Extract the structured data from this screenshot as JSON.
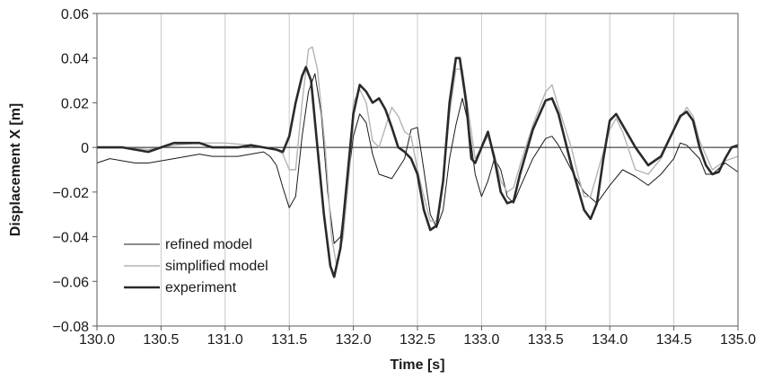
{
  "chart_data": {
    "type": "line",
    "xlabel": "Time [s]",
    "ylabel": "Displacement X [m]",
    "xlim": [
      130.0,
      135.0
    ],
    "ylim": [
      -0.08,
      0.06
    ],
    "x_ticks": [
      130.0,
      130.5,
      131.0,
      131.5,
      132.0,
      132.5,
      133.0,
      133.5,
      134.0,
      134.5,
      135.0
    ],
    "x_tick_labels": [
      "130.0",
      "130.5",
      "131.0",
      "131.5",
      "132.0",
      "132.5",
      "133.0",
      "133.5",
      "134.0",
      "134.5",
      "135.0"
    ],
    "y_ticks": [
      -0.08,
      -0.06,
      -0.04,
      -0.02,
      0,
      0.02,
      0.04,
      0.06
    ],
    "y_tick_labels": [
      "−0.08",
      "−0.06",
      "−0.04",
      "−0.02",
      "0",
      "0.02",
      "0.04",
      "0.06"
    ],
    "grid": "vertical",
    "zero_line": true,
    "legend_position": "bottom-left",
    "series": [
      {
        "name": "refined model",
        "color": "#1a1a1a",
        "width": 1,
        "points": [
          [
            130.0,
            -0.007
          ],
          [
            130.1,
            -0.005
          ],
          [
            130.2,
            -0.006
          ],
          [
            130.3,
            -0.007
          ],
          [
            130.4,
            -0.007
          ],
          [
            130.5,
            -0.006
          ],
          [
            130.6,
            -0.005
          ],
          [
            130.7,
            -0.004
          ],
          [
            130.8,
            -0.003
          ],
          [
            130.9,
            -0.004
          ],
          [
            131.0,
            -0.004
          ],
          [
            131.1,
            -0.004
          ],
          [
            131.2,
            -0.003
          ],
          [
            131.3,
            -0.002
          ],
          [
            131.35,
            -0.004
          ],
          [
            131.4,
            -0.008
          ],
          [
            131.45,
            -0.018
          ],
          [
            131.5,
            -0.027
          ],
          [
            131.55,
            -0.022
          ],
          [
            131.6,
            0.005
          ],
          [
            131.65,
            0.025
          ],
          [
            131.7,
            0.033
          ],
          [
            131.75,
            0.015
          ],
          [
            131.8,
            -0.02
          ],
          [
            131.85,
            -0.043
          ],
          [
            131.9,
            -0.04
          ],
          [
            131.95,
            -0.018
          ],
          [
            132.0,
            0.005
          ],
          [
            132.05,
            0.015
          ],
          [
            132.1,
            0.011
          ],
          [
            132.15,
            -0.003
          ],
          [
            132.2,
            -0.012
          ],
          [
            132.3,
            -0.014
          ],
          [
            132.4,
            -0.005
          ],
          [
            132.45,
            0.008
          ],
          [
            132.5,
            0.009
          ],
          [
            132.55,
            -0.01
          ],
          [
            132.6,
            -0.03
          ],
          [
            132.65,
            -0.036
          ],
          [
            132.7,
            -0.028
          ],
          [
            132.75,
            -0.005
          ],
          [
            132.8,
            0.01
          ],
          [
            132.85,
            0.022
          ],
          [
            132.9,
            0.01
          ],
          [
            132.95,
            -0.012
          ],
          [
            133.0,
            -0.022
          ],
          [
            133.05,
            -0.015
          ],
          [
            133.1,
            -0.005
          ],
          [
            133.15,
            -0.01
          ],
          [
            133.2,
            -0.022
          ],
          [
            133.25,
            -0.025
          ],
          [
            133.3,
            -0.018
          ],
          [
            133.4,
            -0.005
          ],
          [
            133.5,
            0.004
          ],
          [
            133.55,
            0.005
          ],
          [
            133.6,
            0.001
          ],
          [
            133.7,
            -0.01
          ],
          [
            133.8,
            -0.02
          ],
          [
            133.9,
            -0.025
          ],
          [
            134.0,
            -0.017
          ],
          [
            134.1,
            -0.01
          ],
          [
            134.2,
            -0.013
          ],
          [
            134.3,
            -0.017
          ],
          [
            134.4,
            -0.012
          ],
          [
            134.5,
            -0.005
          ],
          [
            134.55,
            0.002
          ],
          [
            134.6,
            0.001
          ],
          [
            134.7,
            -0.005
          ],
          [
            134.75,
            -0.012
          ],
          [
            134.8,
            -0.012
          ],
          [
            134.9,
            -0.007
          ],
          [
            135.0,
            -0.011
          ]
        ]
      },
      {
        "name": "simplified model",
        "color": "#b4b4b4",
        "width": 1.4,
        "points": [
          [
            130.0,
            0.0
          ],
          [
            130.2,
            0.0
          ],
          [
            130.4,
            -0.001
          ],
          [
            130.6,
            0.001
          ],
          [
            130.8,
            0.002
          ],
          [
            131.0,
            0.002
          ],
          [
            131.2,
            0.001
          ],
          [
            131.3,
            0.0
          ],
          [
            131.4,
            -0.001
          ],
          [
            131.45,
            -0.003
          ],
          [
            131.5,
            -0.01
          ],
          [
            131.55,
            -0.01
          ],
          [
            131.6,
            0.02
          ],
          [
            131.65,
            0.044
          ],
          [
            131.68,
            0.045
          ],
          [
            131.72,
            0.035
          ],
          [
            131.78,
            0.0
          ],
          [
            131.83,
            -0.04
          ],
          [
            131.87,
            -0.053
          ],
          [
            131.92,
            -0.04
          ],
          [
            131.97,
            -0.01
          ],
          [
            132.0,
            0.02
          ],
          [
            132.05,
            0.026
          ],
          [
            132.1,
            0.02
          ],
          [
            132.15,
            0.003
          ],
          [
            132.2,
            0.0
          ],
          [
            132.25,
            0.009
          ],
          [
            132.3,
            0.018
          ],
          [
            132.35,
            0.014
          ],
          [
            132.4,
            0.007
          ],
          [
            132.45,
            0.005
          ],
          [
            132.5,
            -0.01
          ],
          [
            132.55,
            -0.022
          ],
          [
            132.6,
            -0.033
          ],
          [
            132.65,
            -0.033
          ],
          [
            132.7,
            -0.015
          ],
          [
            132.75,
            0.015
          ],
          [
            132.8,
            0.035
          ],
          [
            132.85,
            0.035
          ],
          [
            132.9,
            0.015
          ],
          [
            132.95,
            -0.005
          ],
          [
            133.0,
            0.0
          ],
          [
            133.05,
            0.005
          ],
          [
            133.1,
            -0.003
          ],
          [
            133.15,
            -0.015
          ],
          [
            133.2,
            -0.02
          ],
          [
            133.25,
            -0.018
          ],
          [
            133.3,
            -0.008
          ],
          [
            133.4,
            0.01
          ],
          [
            133.5,
            0.025
          ],
          [
            133.55,
            0.028
          ],
          [
            133.6,
            0.018
          ],
          [
            133.7,
            0.0
          ],
          [
            133.75,
            -0.012
          ],
          [
            133.8,
            -0.022
          ],
          [
            133.85,
            -0.022
          ],
          [
            133.9,
            -0.012
          ],
          [
            134.0,
            0.008
          ],
          [
            134.05,
            0.013
          ],
          [
            134.1,
            0.007
          ],
          [
            134.2,
            -0.01
          ],
          [
            134.3,
            -0.012
          ],
          [
            134.4,
            -0.005
          ],
          [
            134.5,
            0.008
          ],
          [
            134.6,
            0.018
          ],
          [
            134.65,
            0.014
          ],
          [
            134.7,
            0.003
          ],
          [
            134.8,
            -0.01
          ],
          [
            134.9,
            -0.006
          ],
          [
            135.0,
            -0.004
          ]
        ]
      },
      {
        "name": "experiment",
        "color": "#2a2a2a",
        "width": 2.6,
        "points": [
          [
            130.0,
            0.0
          ],
          [
            130.2,
            0.0
          ],
          [
            130.3,
            -0.001
          ],
          [
            130.4,
            -0.002
          ],
          [
            130.5,
            0.0
          ],
          [
            130.6,
            0.002
          ],
          [
            130.8,
            0.002
          ],
          [
            130.9,
            0.0
          ],
          [
            131.0,
            0.0
          ],
          [
            131.1,
            0.0
          ],
          [
            131.2,
            0.001
          ],
          [
            131.3,
            0.0
          ],
          [
            131.4,
            -0.001
          ],
          [
            131.45,
            -0.002
          ],
          [
            131.5,
            0.005
          ],
          [
            131.55,
            0.02
          ],
          [
            131.6,
            0.032
          ],
          [
            131.63,
            0.036
          ],
          [
            131.67,
            0.03
          ],
          [
            131.72,
            0.0
          ],
          [
            131.77,
            -0.03
          ],
          [
            131.82,
            -0.053
          ],
          [
            131.85,
            -0.058
          ],
          [
            131.9,
            -0.045
          ],
          [
            131.95,
            -0.015
          ],
          [
            132.0,
            0.015
          ],
          [
            132.05,
            0.028
          ],
          [
            132.1,
            0.025
          ],
          [
            132.15,
            0.02
          ],
          [
            132.2,
            0.022
          ],
          [
            132.25,
            0.017
          ],
          [
            132.3,
            0.009
          ],
          [
            132.35,
            0.0
          ],
          [
            132.4,
            -0.002
          ],
          [
            132.45,
            -0.005
          ],
          [
            132.5,
            -0.012
          ],
          [
            132.55,
            -0.028
          ],
          [
            132.6,
            -0.037
          ],
          [
            132.65,
            -0.035
          ],
          [
            132.7,
            -0.015
          ],
          [
            132.75,
            0.02
          ],
          [
            132.8,
            0.04
          ],
          [
            132.83,
            0.04
          ],
          [
            132.88,
            0.02
          ],
          [
            132.92,
            -0.005
          ],
          [
            132.95,
            -0.007
          ],
          [
            133.0,
            0.0
          ],
          [
            133.05,
            0.007
          ],
          [
            133.1,
            -0.005
          ],
          [
            133.15,
            -0.02
          ],
          [
            133.2,
            -0.025
          ],
          [
            133.25,
            -0.024
          ],
          [
            133.3,
            -0.012
          ],
          [
            133.4,
            0.008
          ],
          [
            133.5,
            0.021
          ],
          [
            133.55,
            0.022
          ],
          [
            133.6,
            0.015
          ],
          [
            133.7,
            -0.008
          ],
          [
            133.8,
            -0.028
          ],
          [
            133.85,
            -0.032
          ],
          [
            133.9,
            -0.025
          ],
          [
            133.95,
            -0.005
          ],
          [
            134.0,
            0.012
          ],
          [
            134.05,
            0.015
          ],
          [
            134.1,
            0.01
          ],
          [
            134.2,
            0.0
          ],
          [
            134.3,
            -0.008
          ],
          [
            134.4,
            -0.004
          ],
          [
            134.5,
            0.008
          ],
          [
            134.55,
            0.014
          ],
          [
            134.6,
            0.016
          ],
          [
            134.65,
            0.012
          ],
          [
            134.7,
            0.0
          ],
          [
            134.75,
            -0.008
          ],
          [
            134.8,
            -0.012
          ],
          [
            134.85,
            -0.011
          ],
          [
            134.9,
            -0.005
          ],
          [
            134.95,
            0.0
          ],
          [
            135.0,
            0.001
          ]
        ]
      }
    ]
  }
}
